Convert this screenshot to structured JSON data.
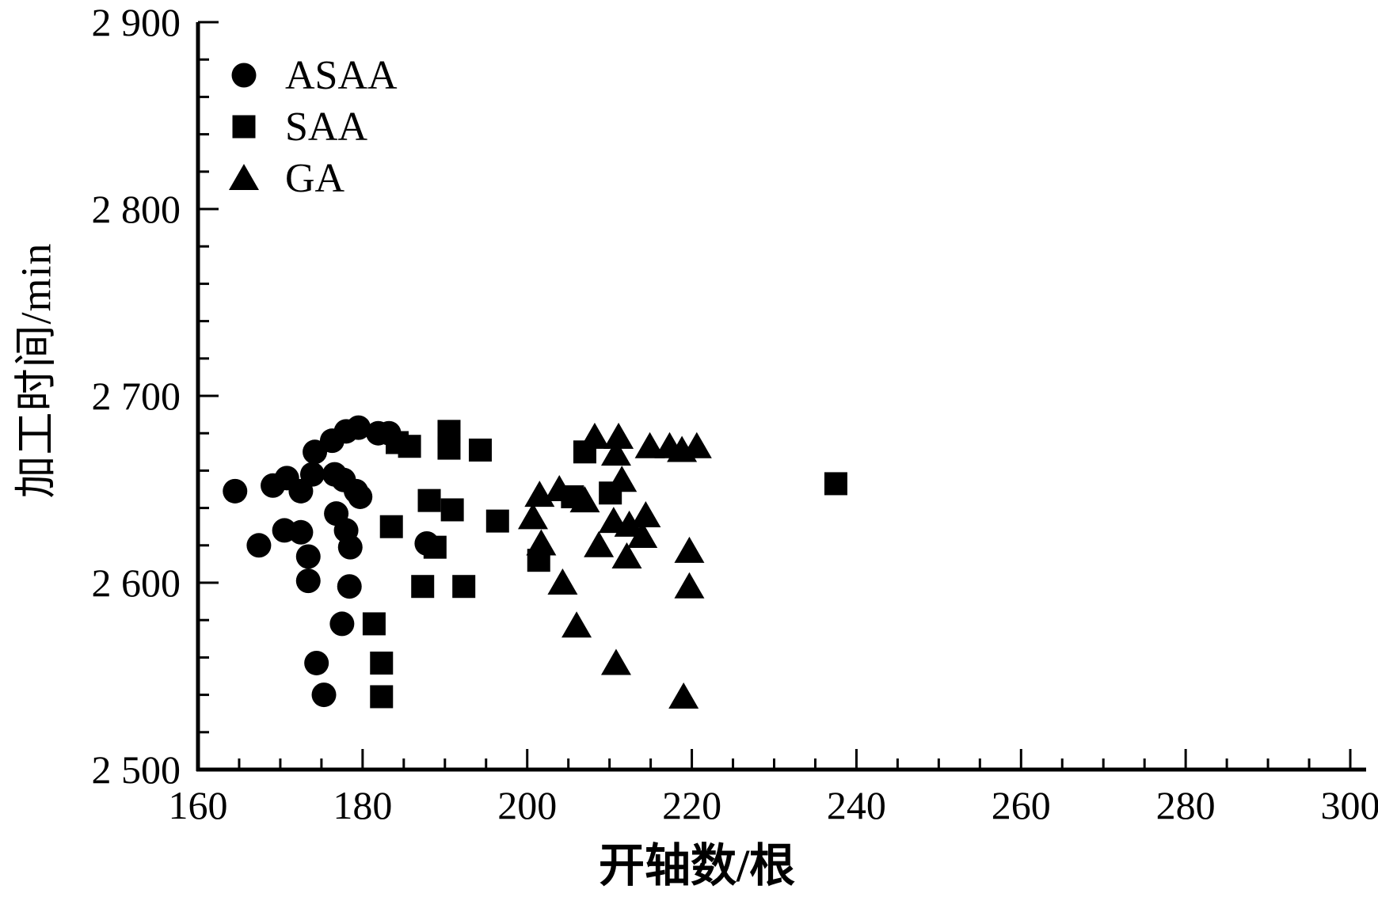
{
  "page": {
    "background": "#ffffff",
    "foreground": "#000000"
  },
  "chart_data": {
    "type": "scatter",
    "title": "",
    "xlabel": "开轴数/根",
    "ylabel": "加工时间/min",
    "xlim": [
      160,
      300
    ],
    "ylim": [
      2500,
      2900
    ],
    "x_ticks": [
      160,
      180,
      200,
      220,
      240,
      260,
      280,
      300
    ],
    "x_tick_labels": [
      "160",
      "180",
      "200",
      "220",
      "240",
      "260",
      "280",
      "300"
    ],
    "x_minor_step": 5,
    "y_ticks": [
      2500,
      2600,
      2700,
      2800,
      2900
    ],
    "y_tick_labels": [
      "2 500",
      "2 600",
      "2 700",
      "2 800",
      "2 900"
    ],
    "y_minor_step": 20,
    "grid": false,
    "marker_color": "#000000",
    "legend": {
      "position": "top-left-inside",
      "items": [
        {
          "label": "ASAA",
          "marker": "circle"
        },
        {
          "label": "SAA",
          "marker": "square"
        },
        {
          "label": "GA",
          "marker": "triangle"
        }
      ]
    },
    "series": [
      {
        "name": "ASAA",
        "marker": "circle",
        "points": [
          [
            164.5,
            2649
          ],
          [
            167.4,
            2620
          ],
          [
            169.1,
            2652
          ],
          [
            170.5,
            2628
          ],
          [
            170.8,
            2656
          ],
          [
            172.5,
            2649
          ],
          [
            172.5,
            2627
          ],
          [
            173.4,
            2614
          ],
          [
            173.4,
            2601
          ],
          [
            173.9,
            2658
          ],
          [
            174.2,
            2670
          ],
          [
            174.4,
            2557
          ],
          [
            175.3,
            2540
          ],
          [
            176.3,
            2676
          ],
          [
            176.6,
            2658
          ],
          [
            176.8,
            2637
          ],
          [
            177.5,
            2578
          ],
          [
            177.7,
            2655
          ],
          [
            178.0,
            2681
          ],
          [
            178.0,
            2628
          ],
          [
            178.4,
            2598
          ],
          [
            178.5,
            2619
          ],
          [
            179.2,
            2649
          ],
          [
            179.5,
            2683
          ],
          [
            179.7,
            2646
          ],
          [
            181.9,
            2680
          ],
          [
            183.2,
            2680
          ],
          [
            187.8,
            2621
          ]
        ]
      },
      {
        "name": "SAA",
        "marker": "square",
        "points": [
          [
            181.4,
            2578
          ],
          [
            182.3,
            2557
          ],
          [
            182.3,
            2539
          ],
          [
            183.5,
            2630
          ],
          [
            184.2,
            2675
          ],
          [
            185.7,
            2673
          ],
          [
            187.3,
            2598
          ],
          [
            188.1,
            2644
          ],
          [
            188.8,
            2619
          ],
          [
            190.5,
            2681
          ],
          [
            190.5,
            2672
          ],
          [
            190.9,
            2639
          ],
          [
            192.3,
            2598
          ],
          [
            194.3,
            2671
          ],
          [
            196.4,
            2633
          ],
          [
            201.4,
            2612
          ],
          [
            205.5,
            2646
          ],
          [
            207.0,
            2670
          ],
          [
            210.1,
            2648
          ],
          [
            237.5,
            2653
          ]
        ]
      },
      {
        "name": "GA",
        "marker": "triangle",
        "points": [
          [
            200.7,
            2635
          ],
          [
            201.5,
            2647
          ],
          [
            201.7,
            2621
          ],
          [
            203.9,
            2650
          ],
          [
            204.3,
            2600
          ],
          [
            206.0,
            2577
          ],
          [
            207.0,
            2644
          ],
          [
            208.2,
            2678
          ],
          [
            208.7,
            2620
          ],
          [
            210.5,
            2633
          ],
          [
            210.8,
            2669
          ],
          [
            210.8,
            2557
          ],
          [
            211.1,
            2678
          ],
          [
            211.5,
            2655
          ],
          [
            212.1,
            2614
          ],
          [
            212.4,
            2631
          ],
          [
            214.0,
            2625
          ],
          [
            214.4,
            2636
          ],
          [
            214.9,
            2673
          ],
          [
            217.3,
            2673
          ],
          [
            218.8,
            2671
          ],
          [
            219.0,
            2539
          ],
          [
            219.7,
            2617
          ],
          [
            219.7,
            2598
          ],
          [
            220.6,
            2673
          ]
        ]
      }
    ]
  }
}
